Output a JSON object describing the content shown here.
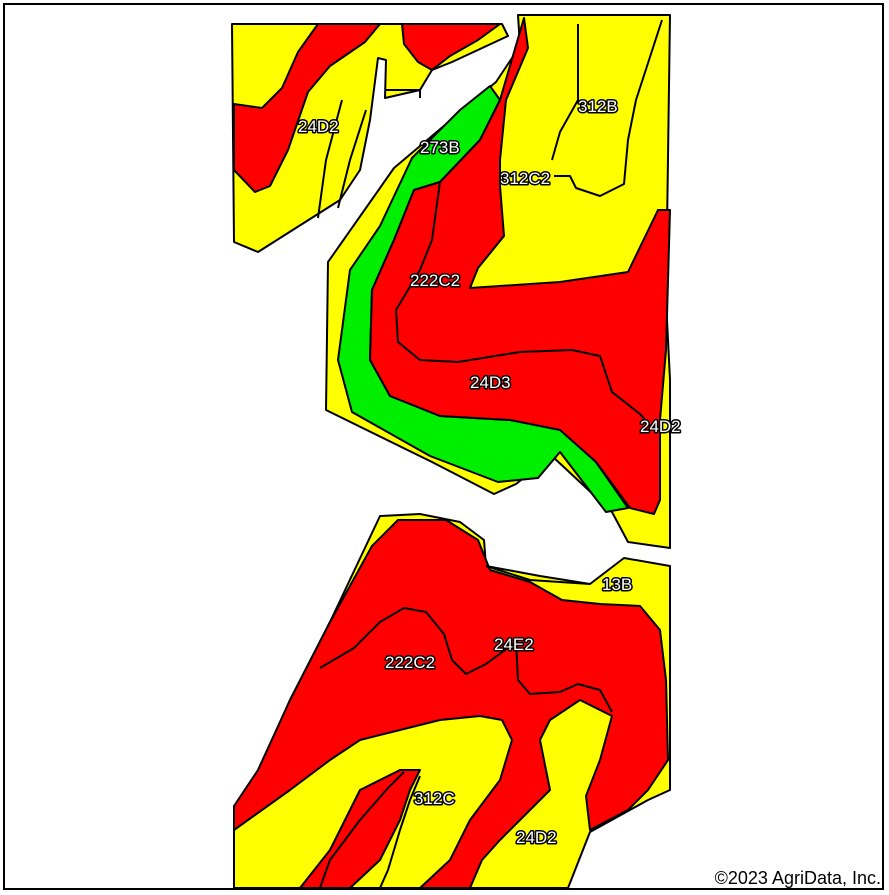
{
  "colors": {
    "yellow": "#ffff00",
    "red": "#ff0000",
    "green": "#00ee00",
    "outline": "#000000"
  },
  "labels": {
    "north_west_24D2": "24D2",
    "label_273B": "273B",
    "label_312B": "312B",
    "label_312C2": "312C2",
    "north_222C2": "222C2",
    "label_24D3": "24D3",
    "east_24D2": "24D2",
    "label_13B": "13B",
    "label_24E2": "24E2",
    "south_222C2": "222C2",
    "label_312C": "312C",
    "south_24D2": "24D2"
  },
  "copyright": "©2023 AgriData, Inc."
}
